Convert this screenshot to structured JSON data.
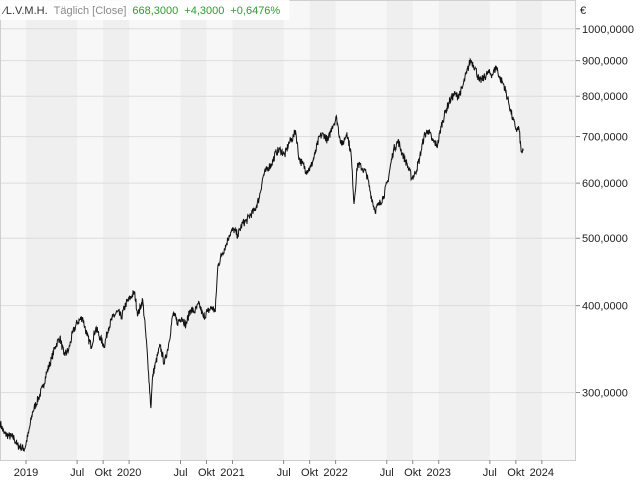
{
  "header": {
    "symbol": "L.V.M.H.",
    "interval": "Täglich [Close]",
    "last": "668,3000",
    "change": "+4,3000",
    "change_pct": "+0,6476%"
  },
  "colors": {
    "up": "#2e9b2e",
    "muted": "#8a8a8a",
    "line": "#111111",
    "grid": "#dcdcdc",
    "band_light": "#f7f7f7",
    "band_dark": "#efefef"
  },
  "chart_data": {
    "type": "line",
    "yscale": "log",
    "currency_symbol": "€",
    "ylim": [
      240,
      1100
    ],
    "y_ticks": [
      {
        "value": 1000,
        "label": "1000,0000"
      },
      {
        "value": 900,
        "label": "900,0000"
      },
      {
        "value": 800,
        "label": "800,0000"
      },
      {
        "value": 700,
        "label": "700,0000"
      },
      {
        "value": 600,
        "label": "600,0000"
      },
      {
        "value": 500,
        "label": "500,0000"
      },
      {
        "value": 400,
        "label": "400,0000"
      },
      {
        "value": 300,
        "label": "300,0000"
      }
    ],
    "xlim": [
      "2018-10-01",
      "2024-05-01"
    ],
    "x_ticks": [
      {
        "date": "2019-01-01",
        "label": "2019"
      },
      {
        "date": "2019-07-01",
        "label": "Jul"
      },
      {
        "date": "2019-10-01",
        "label": "Okt"
      },
      {
        "date": "2020-01-01",
        "label": "2020"
      },
      {
        "date": "2020-07-01",
        "label": "Jul"
      },
      {
        "date": "2020-10-01",
        "label": "Okt"
      },
      {
        "date": "2021-01-01",
        "label": "2021"
      },
      {
        "date": "2021-07-01",
        "label": "Jul"
      },
      {
        "date": "2021-10-01",
        "label": "Okt"
      },
      {
        "date": "2022-01-01",
        "label": "2022"
      },
      {
        "date": "2022-07-01",
        "label": "Jul"
      },
      {
        "date": "2022-10-01",
        "label": "Okt"
      },
      {
        "date": "2023-01-01",
        "label": "2023"
      },
      {
        "date": "2023-07-01",
        "label": "Jul"
      },
      {
        "date": "2023-10-01",
        "label": "Okt"
      },
      {
        "date": "2024-01-01",
        "label": "2024"
      }
    ],
    "series": [
      {
        "points": [
          [
            "2018-10-01",
            272
          ],
          [
            "2018-10-15",
            262
          ],
          [
            "2018-11-01",
            260
          ],
          [
            "2018-11-20",
            258
          ],
          [
            "2018-12-01",
            252
          ],
          [
            "2018-12-27",
            249
          ],
          [
            "2019-01-10",
            262
          ],
          [
            "2019-01-25",
            282
          ],
          [
            "2019-02-15",
            295
          ],
          [
            "2019-03-01",
            305
          ],
          [
            "2019-03-15",
            320
          ],
          [
            "2019-04-01",
            335
          ],
          [
            "2019-04-15",
            350
          ],
          [
            "2019-05-01",
            360
          ],
          [
            "2019-05-15",
            340
          ],
          [
            "2019-06-01",
            345
          ],
          [
            "2019-06-15",
            365
          ],
          [
            "2019-07-01",
            378
          ],
          [
            "2019-07-20",
            385
          ],
          [
            "2019-08-05",
            362
          ],
          [
            "2019-08-20",
            350
          ],
          [
            "2019-09-05",
            372
          ],
          [
            "2019-09-20",
            360
          ],
          [
            "2019-10-05",
            350
          ],
          [
            "2019-10-20",
            372
          ],
          [
            "2019-11-05",
            385
          ],
          [
            "2019-11-20",
            392
          ],
          [
            "2019-12-05",
            385
          ],
          [
            "2019-12-20",
            402
          ],
          [
            "2020-01-08",
            412
          ],
          [
            "2020-01-20",
            418
          ],
          [
            "2020-02-01",
            388
          ],
          [
            "2020-02-18",
            408
          ],
          [
            "2020-03-01",
            360
          ],
          [
            "2020-03-10",
            320
          ],
          [
            "2020-03-18",
            285
          ],
          [
            "2020-03-25",
            318
          ],
          [
            "2020-04-05",
            332
          ],
          [
            "2020-04-20",
            350
          ],
          [
            "2020-05-05",
            330
          ],
          [
            "2020-05-20",
            352
          ],
          [
            "2020-06-05",
            390
          ],
          [
            "2020-06-20",
            378
          ],
          [
            "2020-07-05",
            385
          ],
          [
            "2020-07-20",
            375
          ],
          [
            "2020-08-05",
            395
          ],
          [
            "2020-08-20",
            392
          ],
          [
            "2020-09-05",
            402
          ],
          [
            "2020-09-20",
            385
          ],
          [
            "2020-10-05",
            392
          ],
          [
            "2020-10-20",
            398
          ],
          [
            "2020-11-01",
            392
          ],
          [
            "2020-11-10",
            455
          ],
          [
            "2020-11-25",
            475
          ],
          [
            "2020-12-10",
            490
          ],
          [
            "2020-12-20",
            505
          ],
          [
            "2021-01-05",
            515
          ],
          [
            "2021-01-20",
            505
          ],
          [
            "2021-02-05",
            525
          ],
          [
            "2021-02-20",
            530
          ],
          [
            "2021-03-05",
            540
          ],
          [
            "2021-03-20",
            548
          ],
          [
            "2021-04-05",
            570
          ],
          [
            "2021-04-20",
            615
          ],
          [
            "2021-05-05",
            630
          ],
          [
            "2021-05-20",
            640
          ],
          [
            "2021-06-05",
            665
          ],
          [
            "2021-06-20",
            670
          ],
          [
            "2021-07-05",
            658
          ],
          [
            "2021-07-20",
            685
          ],
          [
            "2021-08-05",
            700
          ],
          [
            "2021-08-12",
            715
          ],
          [
            "2021-08-25",
            650
          ],
          [
            "2021-09-05",
            640
          ],
          [
            "2021-09-20",
            625
          ],
          [
            "2021-10-05",
            632
          ],
          [
            "2021-10-20",
            660
          ],
          [
            "2021-11-05",
            700
          ],
          [
            "2021-11-20",
            705
          ],
          [
            "2021-12-05",
            690
          ],
          [
            "2021-12-20",
            725
          ],
          [
            "2022-01-05",
            745
          ],
          [
            "2022-01-15",
            700
          ],
          [
            "2022-01-25",
            680
          ],
          [
            "2022-02-10",
            710
          ],
          [
            "2022-02-25",
            660
          ],
          [
            "2022-03-07",
            560
          ],
          [
            "2022-03-20",
            640
          ],
          [
            "2022-04-05",
            630
          ],
          [
            "2022-04-20",
            620
          ],
          [
            "2022-05-05",
            580
          ],
          [
            "2022-05-20",
            548
          ],
          [
            "2022-06-05",
            560
          ],
          [
            "2022-06-20",
            575
          ],
          [
            "2022-07-05",
            605
          ],
          [
            "2022-07-25",
            670
          ],
          [
            "2022-08-10",
            690
          ],
          [
            "2022-08-25",
            662
          ],
          [
            "2022-09-10",
            640
          ],
          [
            "2022-09-28",
            610
          ],
          [
            "2022-10-10",
            620
          ],
          [
            "2022-10-25",
            650
          ],
          [
            "2022-11-10",
            700
          ],
          [
            "2022-11-25",
            715
          ],
          [
            "2022-12-10",
            690
          ],
          [
            "2022-12-28",
            680
          ],
          [
            "2023-01-10",
            725
          ],
          [
            "2023-01-25",
            760
          ],
          [
            "2023-02-10",
            790
          ],
          [
            "2023-02-25",
            805
          ],
          [
            "2023-03-10",
            800
          ],
          [
            "2023-03-25",
            820
          ],
          [
            "2023-04-10",
            865
          ],
          [
            "2023-04-24",
            902
          ],
          [
            "2023-05-10",
            880
          ],
          [
            "2023-05-25",
            840
          ],
          [
            "2023-06-10",
            850
          ],
          [
            "2023-06-25",
            865
          ],
          [
            "2023-07-10",
            860
          ],
          [
            "2023-07-24",
            882
          ],
          [
            "2023-08-05",
            850
          ],
          [
            "2023-08-20",
            830
          ],
          [
            "2023-09-05",
            785
          ],
          [
            "2023-09-20",
            742
          ],
          [
            "2023-09-28",
            725
          ],
          [
            "2023-10-05",
            715
          ],
          [
            "2023-10-12",
            720
          ],
          [
            "2023-10-20",
            665
          ],
          [
            "2023-10-27",
            668
          ]
        ]
      }
    ],
    "grid": true,
    "legend": "none"
  }
}
